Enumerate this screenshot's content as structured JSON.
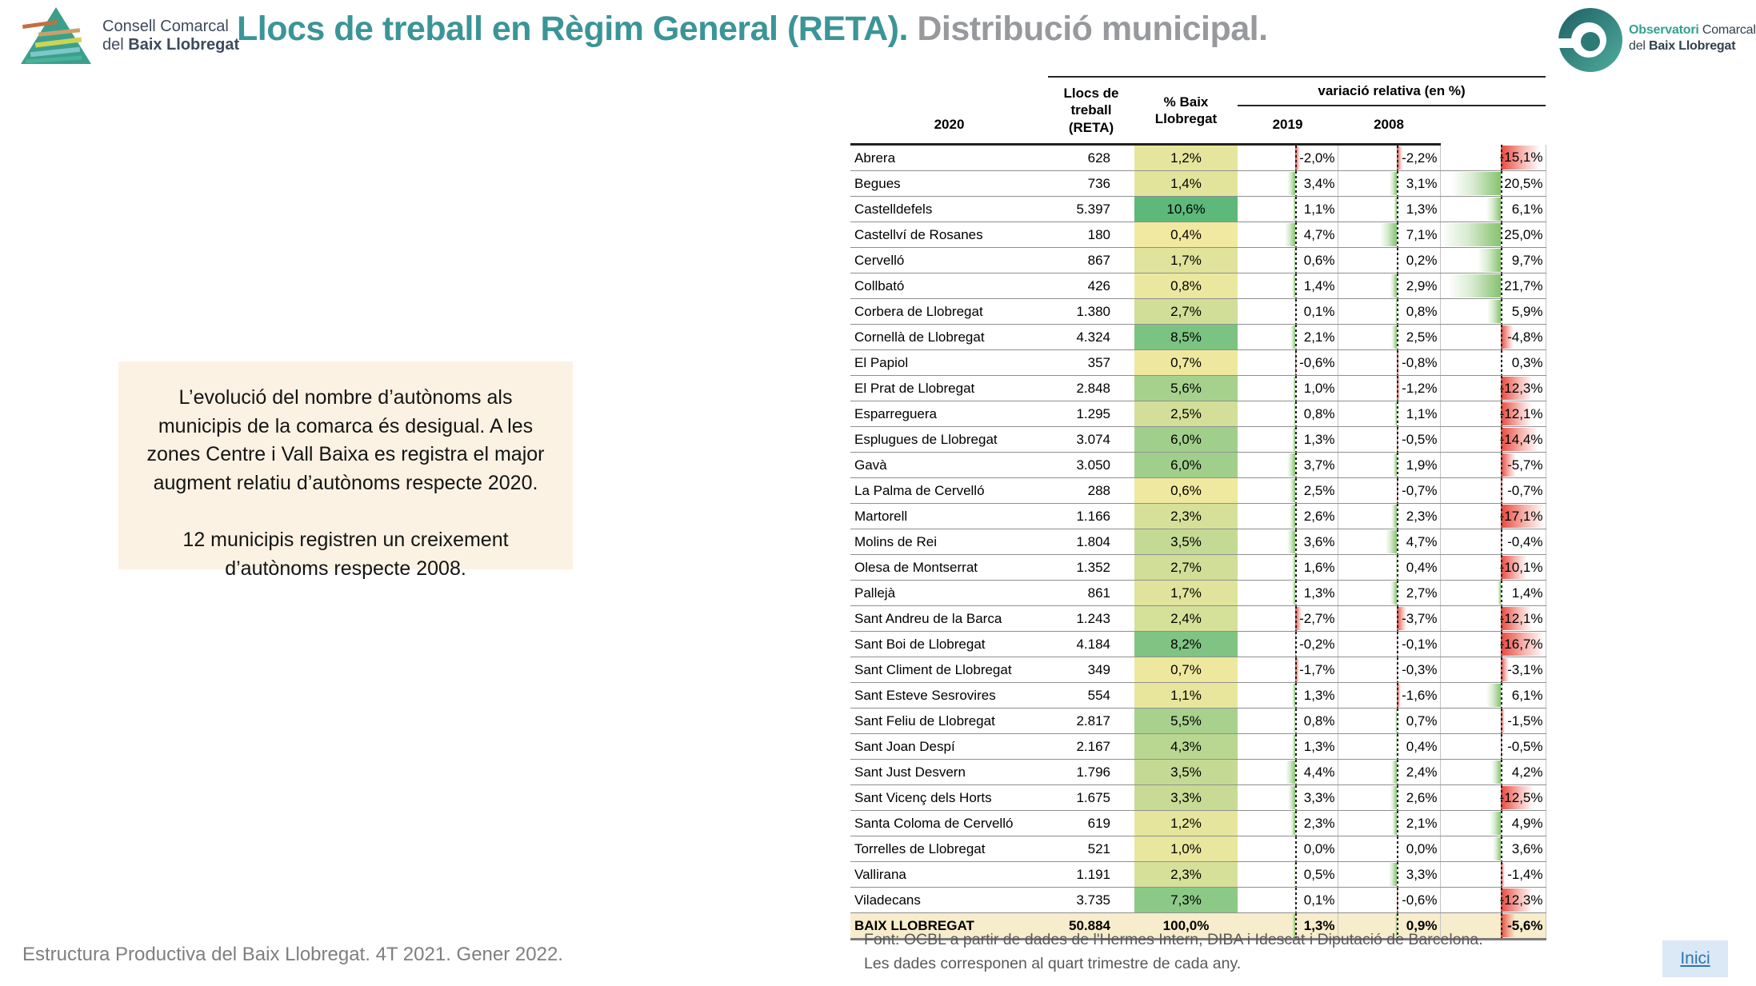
{
  "header": {
    "logo_left": {
      "name_line1": "Consell Comarcal",
      "name_line2_prefix": "del ",
      "name_line2_bold": "Baix Llobregat"
    },
    "title": {
      "main": "Llocs de treball en Règim General (RETA).",
      "sub": " Distribució municipal."
    },
    "logo_right": {
      "brand_bold": "Observatori",
      "brand_rest": " Comarcal",
      "line2_prefix": "del ",
      "line2_bold": "Baix Llobregat"
    }
  },
  "note_box": {
    "paragraph_1": "L’evolució del nombre d’autònoms als municipis de la comarca és desigual. A les zones Centre i Vall Baixa es registra el major augment relatiu d’autònoms respecte 2020.",
    "paragraph_2": "12 municipis registren un creixement d’autònoms respecte 2008."
  },
  "table": {
    "headers": {
      "jobs_line1": "Llocs de",
      "jobs_line2": "treball",
      "jobs_line3": "(RETA)",
      "pct_line1": "% Baix",
      "pct_line2": "Llobregat",
      "variation_group": "variació relativa (en %)",
      "years": [
        "2020",
        "2019",
        "2008"
      ]
    },
    "rows": [
      {
        "name": "Abrera",
        "jobs": "628",
        "pct": "1,2%",
        "pct_value": 1.2,
        "var": [
          -2.0,
          -2.2,
          -15.1
        ]
      },
      {
        "name": "Begues",
        "jobs": "736",
        "pct": "1,4%",
        "pct_value": 1.4,
        "var": [
          3.4,
          3.1,
          20.5
        ]
      },
      {
        "name": "Castelldefels",
        "jobs": "5.397",
        "pct": "10,6%",
        "pct_value": 10.6,
        "var": [
          1.1,
          1.3,
          6.1
        ]
      },
      {
        "name": "Castellví de Rosanes",
        "jobs": "180",
        "pct": "0,4%",
        "pct_value": 0.4,
        "var": [
          4.7,
          7.1,
          25.0
        ]
      },
      {
        "name": "Cervelló",
        "jobs": "867",
        "pct": "1,7%",
        "pct_value": 1.7,
        "var": [
          0.6,
          0.2,
          9.7
        ]
      },
      {
        "name": "Collbató",
        "jobs": "426",
        "pct": "0,8%",
        "pct_value": 0.8,
        "var": [
          1.4,
          2.9,
          21.7
        ]
      },
      {
        "name": "Corbera de Llobregat",
        "jobs": "1.380",
        "pct": "2,7%",
        "pct_value": 2.7,
        "var": [
          0.1,
          0.8,
          5.9
        ]
      },
      {
        "name": "Cornellà de Llobregat",
        "jobs": "4.324",
        "pct": "8,5%",
        "pct_value": 8.5,
        "var": [
          2.1,
          2.5,
          -4.8
        ]
      },
      {
        "name": "El Papiol",
        "jobs": "357",
        "pct": "0,7%",
        "pct_value": 0.7,
        "var": [
          -0.6,
          -0.8,
          0.3
        ]
      },
      {
        "name": "El Prat de Llobregat",
        "jobs": "2.848",
        "pct": "5,6%",
        "pct_value": 5.6,
        "var": [
          1.0,
          -1.2,
          -12.3
        ]
      },
      {
        "name": "Esparreguera",
        "jobs": "1.295",
        "pct": "2,5%",
        "pct_value": 2.5,
        "var": [
          0.8,
          1.1,
          -12.1
        ]
      },
      {
        "name": "Esplugues de Llobregat",
        "jobs": "3.074",
        "pct": "6,0%",
        "pct_value": 6.0,
        "var": [
          1.3,
          -0.5,
          -14.4
        ]
      },
      {
        "name": "Gavà",
        "jobs": "3.050",
        "pct": "6,0%",
        "pct_value": 6.0,
        "var": [
          3.7,
          1.9,
          -5.7
        ]
      },
      {
        "name": "La Palma de Cervelló",
        "jobs": "288",
        "pct": "0,6%",
        "pct_value": 0.6,
        "var": [
          2.5,
          -0.7,
          -0.7
        ]
      },
      {
        "name": "Martorell",
        "jobs": "1.166",
        "pct": "2,3%",
        "pct_value": 2.3,
        "var": [
          2.6,
          2.3,
          -17.1
        ]
      },
      {
        "name": "Molins de Rei",
        "jobs": "1.804",
        "pct": "3,5%",
        "pct_value": 3.5,
        "var": [
          3.6,
          4.7,
          -0.4
        ]
      },
      {
        "name": "Olesa de Montserrat",
        "jobs": "1.352",
        "pct": "2,7%",
        "pct_value": 2.7,
        "var": [
          1.6,
          0.4,
          -10.1
        ]
      },
      {
        "name": "Pallejà",
        "jobs": "861",
        "pct": "1,7%",
        "pct_value": 1.7,
        "var": [
          1.3,
          2.7,
          1.4
        ]
      },
      {
        "name": "Sant Andreu de la Barca",
        "jobs": "1.243",
        "pct": "2,4%",
        "pct_value": 2.4,
        "var": [
          -2.7,
          -3.7,
          -12.1
        ]
      },
      {
        "name": "Sant Boi de Llobregat",
        "jobs": "4.184",
        "pct": "8,2%",
        "pct_value": 8.2,
        "var": [
          -0.2,
          -0.1,
          -16.7
        ]
      },
      {
        "name": "Sant Climent de Llobregat",
        "jobs": "349",
        "pct": "0,7%",
        "pct_value": 0.7,
        "var": [
          -1.7,
          -0.3,
          -3.1
        ]
      },
      {
        "name": "Sant Esteve Sesrovires",
        "jobs": "554",
        "pct": "1,1%",
        "pct_value": 1.1,
        "var": [
          1.3,
          -1.6,
          6.1
        ]
      },
      {
        "name": "Sant Feliu de Llobregat",
        "jobs": "2.817",
        "pct": "5,5%",
        "pct_value": 5.5,
        "var": [
          0.8,
          0.7,
          -1.5
        ]
      },
      {
        "name": "Sant Joan Despí",
        "jobs": "2.167",
        "pct": "4,3%",
        "pct_value": 4.3,
        "var": [
          1.3,
          0.4,
          -0.5
        ]
      },
      {
        "name": "Sant Just Desvern",
        "jobs": "1.796",
        "pct": "3,5%",
        "pct_value": 3.5,
        "var": [
          4.4,
          2.4,
          4.2
        ]
      },
      {
        "name": "Sant Vicenç dels Horts",
        "jobs": "1.675",
        "pct": "3,3%",
        "pct_value": 3.3,
        "var": [
          3.3,
          2.6,
          -12.5
        ]
      },
      {
        "name": "Santa Coloma de Cervelló",
        "jobs": "619",
        "pct": "1,2%",
        "pct_value": 1.2,
        "var": [
          2.3,
          2.1,
          4.9
        ]
      },
      {
        "name": "Torrelles de Llobregat",
        "jobs": "521",
        "pct": "1,0%",
        "pct_value": 1.0,
        "var": [
          0.0,
          0.0,
          3.6
        ]
      },
      {
        "name": "Vallirana",
        "jobs": "1.191",
        "pct": "2,3%",
        "pct_value": 2.3,
        "var": [
          0.5,
          3.3,
          -1.4
        ]
      },
      {
        "name": "Viladecans",
        "jobs": "3.735",
        "pct": "7,3%",
        "pct_value": 7.3,
        "var": [
          0.1,
          -0.6,
          -12.3
        ]
      }
    ],
    "total_row": {
      "name": "BAIX LLOBREGAT",
      "jobs": "50.884",
      "pct": "100,0%",
      "var": [
        1.3,
        0.9,
        -5.6
      ]
    }
  },
  "footer": {
    "report_title": "Estructura Productiva del Baix Llobregat. 4T 2021. Gener 2022.",
    "source_line1": "Font: OCBL a partir de dades de l'Hermes Intern, DIBA i Idescat i Diputació de Barcelona.",
    "source_line2": "Les dades corresponen al quart trimestre de cada any.",
    "home_link": "Inici"
  },
  "colors": {
    "title_teal": "#3b9597",
    "title_gray": "#97999c",
    "bar_positive": "#86c36f",
    "bar_negative": "#e8473b",
    "scale_yellow_low": "#f2e9a0",
    "scale_green_high": "#5cb97a",
    "total_row_bg": "#f7eccb",
    "note_bg": "#fcf2e3",
    "link_blue": "#2e74b5",
    "link_bg": "#dbe8f6"
  },
  "bar_scale": {
    "axis_percent": 58,
    "positive_max": 25.0,
    "negative_max": 17.1
  }
}
